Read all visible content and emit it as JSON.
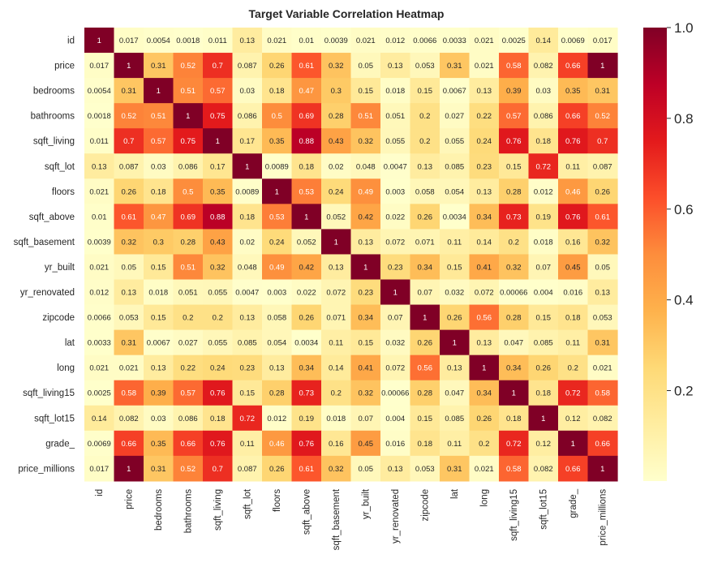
{
  "chart_data": {
    "type": "heatmap",
    "title": "Target Variable Correlation Heatmap",
    "xlabel": "",
    "ylabel": "",
    "labels": [
      "id",
      "price",
      "bedrooms",
      "bathrooms",
      "sqft_living",
      "sqft_lot",
      "floors",
      "sqft_above",
      "sqft_basement",
      "yr_built",
      "yr_renovated",
      "zipcode",
      "lat",
      "long",
      "sqft_living15",
      "sqft_lot15",
      "grade_",
      "price_millions"
    ],
    "cell_text": [
      [
        "1",
        "0.017",
        "0.0054",
        "0.0018",
        "0.011",
        "0.13",
        "0.021",
        "0.01",
        "0.0039",
        "0.021",
        "0.012",
        "0.0066",
        "0.0033",
        "0.021",
        "0.0025",
        "0.14",
        "0.0069",
        "0.017"
      ],
      [
        "0.017",
        "1",
        "0.31",
        "0.52",
        "0.7",
        "0.087",
        "0.26",
        "0.61",
        "0.32",
        "0.05",
        "0.13",
        "0.053",
        "0.31",
        "0.021",
        "0.58",
        "0.082",
        "0.66",
        "1"
      ],
      [
        "0.0054",
        "0.31",
        "1",
        "0.51",
        "0.57",
        "0.03",
        "0.18",
        "0.47",
        "0.3",
        "0.15",
        "0.018",
        "0.15",
        "0.0067",
        "0.13",
        "0.39",
        "0.03",
        "0.35",
        "0.31"
      ],
      [
        "0.0018",
        "0.52",
        "0.51",
        "1",
        "0.75",
        "0.086",
        "0.5",
        "0.69",
        "0.28",
        "0.51",
        "0.051",
        "0.2",
        "0.027",
        "0.22",
        "0.57",
        "0.086",
        "0.66",
        "0.52"
      ],
      [
        "0.011",
        "0.7",
        "0.57",
        "0.75",
        "1",
        "0.17",
        "0.35",
        "0.88",
        "0.43",
        "0.32",
        "0.055",
        "0.2",
        "0.055",
        "0.24",
        "0.76",
        "0.18",
        "0.76",
        "0.7"
      ],
      [
        "0.13",
        "0.087",
        "0.03",
        "0.086",
        "0.17",
        "1",
        "0.0089",
        "0.18",
        "0.02",
        "0.048",
        "0.0047",
        "0.13",
        "0.085",
        "0.23",
        "0.15",
        "0.72",
        "0.11",
        "0.087"
      ],
      [
        "0.021",
        "0.26",
        "0.18",
        "0.5",
        "0.35",
        "0.0089",
        "1",
        "0.53",
        "0.24",
        "0.49",
        "0.003",
        "0.058",
        "0.054",
        "0.13",
        "0.28",
        "0.012",
        "0.46",
        "0.26"
      ],
      [
        "0.01",
        "0.61",
        "0.47",
        "0.69",
        "0.88",
        "0.18",
        "0.53",
        "1",
        "0.052",
        "0.42",
        "0.022",
        "0.26",
        "0.0034",
        "0.34",
        "0.73",
        "0.19",
        "0.76",
        "0.61"
      ],
      [
        "0.0039",
        "0.32",
        "0.3",
        "0.28",
        "0.43",
        "0.02",
        "0.24",
        "0.052",
        "1",
        "0.13",
        "0.072",
        "0.071",
        "0.11",
        "0.14",
        "0.2",
        "0.018",
        "0.16",
        "0.32"
      ],
      [
        "0.021",
        "0.05",
        "0.15",
        "0.51",
        "0.32",
        "0.048",
        "0.49",
        "0.42",
        "0.13",
        "1",
        "0.23",
        "0.34",
        "0.15",
        "0.41",
        "0.32",
        "0.07",
        "0.45",
        "0.05"
      ],
      [
        "0.012",
        "0.13",
        "0.018",
        "0.051",
        "0.055",
        "0.0047",
        "0.003",
        "0.022",
        "0.072",
        "0.23",
        "1",
        "0.07",
        "0.032",
        "0.072",
        "0.00066",
        "0.004",
        "0.016",
        "0.13"
      ],
      [
        "0.0066",
        "0.053",
        "0.15",
        "0.2",
        "0.2",
        "0.13",
        "0.058",
        "0.26",
        "0.071",
        "0.34",
        "0.07",
        "1",
        "0.26",
        "0.56",
        "0.28",
        "0.15",
        "0.18",
        "0.053"
      ],
      [
        "0.0033",
        "0.31",
        "0.0067",
        "0.027",
        "0.055",
        "0.085",
        "0.054",
        "0.0034",
        "0.11",
        "0.15",
        "0.032",
        "0.26",
        "1",
        "0.13",
        "0.047",
        "0.085",
        "0.11",
        "0.31"
      ],
      [
        "0.021",
        "0.021",
        "0.13",
        "0.22",
        "0.24",
        "0.23",
        "0.13",
        "0.34",
        "0.14",
        "0.41",
        "0.072",
        "0.56",
        "0.13",
        "1",
        "0.34",
        "0.26",
        "0.2",
        "0.021"
      ],
      [
        "0.0025",
        "0.58",
        "0.39",
        "0.57",
        "0.76",
        "0.15",
        "0.28",
        "0.73",
        "0.2",
        "0.32",
        "0.00066",
        "0.28",
        "0.047",
        "0.34",
        "1",
        "0.18",
        "0.72",
        "0.58"
      ],
      [
        "0.14",
        "0.082",
        "0.03",
        "0.086",
        "0.18",
        "0.72",
        "0.012",
        "0.19",
        "0.018",
        "0.07",
        "0.004",
        "0.15",
        "0.085",
        "0.26",
        "0.18",
        "1",
        "0.12",
        "0.082"
      ],
      [
        "0.0069",
        "0.66",
        "0.35",
        "0.66",
        "0.76",
        "0.11",
        "0.46",
        "0.76",
        "0.16",
        "0.45",
        "0.016",
        "0.18",
        "0.11",
        "0.2",
        "0.72",
        "0.12",
        "1",
        "0.66"
      ],
      [
        "0.017",
        "1",
        "0.31",
        "0.52",
        "0.7",
        "0.087",
        "0.26",
        "0.61",
        "0.32",
        "0.05",
        "0.13",
        "0.053",
        "0.31",
        "0.021",
        "0.58",
        "0.082",
        "0.66",
        "1"
      ]
    ],
    "colorbar": {
      "ticks": [
        "0.2",
        "0.4",
        "0.6",
        "0.8",
        "1.0"
      ],
      "tick_values": [
        0.2,
        0.4,
        0.6,
        0.8,
        1.0
      ],
      "vmin": 0.00066,
      "vmax": 1.0
    },
    "colormap": {
      "name": "YlOrRd",
      "stops": [
        "#ffffcc",
        "#ffeda0",
        "#fed976",
        "#feb24c",
        "#fd8d3c",
        "#fc4e2a",
        "#e31a1c",
        "#bd0026",
        "#800026"
      ]
    },
    "text_colors": {
      "dark": "#262626",
      "light": "#ffffff"
    }
  }
}
